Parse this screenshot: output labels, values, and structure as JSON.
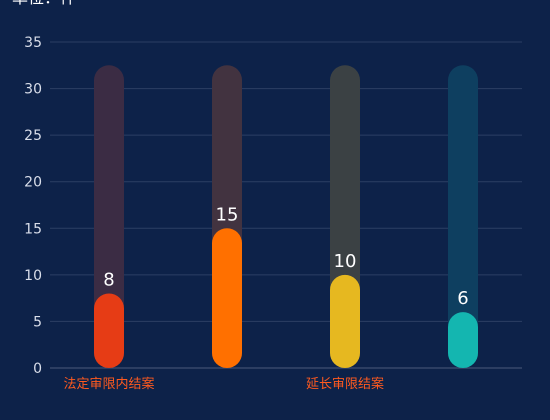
{
  "unit_label": "单位：件",
  "chart_data": {
    "type": "bar",
    "categories": [
      "法定审限内结案",
      "",
      "延长审限结案",
      ""
    ],
    "values": [
      8,
      15,
      10,
      6
    ],
    "ylim": [
      0,
      35
    ],
    "yticks": [
      0,
      5,
      10,
      15,
      20,
      25,
      30,
      35
    ],
    "background_value": 32.5,
    "grid": true,
    "bar_colors": [
      "#e63c15",
      "#ff7000",
      "#e6b820",
      "#14b6b0"
    ],
    "track_colors": [
      "#3b2c44",
      "#423340",
      "#3b4144",
      "#0e3f60"
    ],
    "category_label_color": "#ff5a1f",
    "value_label_color": "#ffffff",
    "axis_label_color": "#d9deea",
    "grid_color": "#2c3f64"
  }
}
